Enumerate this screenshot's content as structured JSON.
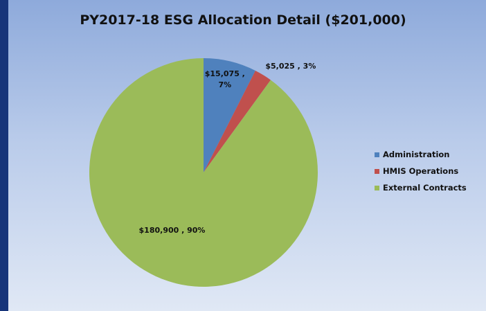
{
  "chart_data": {
    "type": "pie",
    "title": "PY2017-18 ESG Allocation Detail ($201,000)",
    "categories": [
      "Administration",
      "HMIS Operations",
      "External Contracts"
    ],
    "values": [
      15075,
      5025,
      180900
    ],
    "value_labels": [
      "$15,075 , 7%",
      "$5,025 , 3%",
      "$180,900 , 90%"
    ],
    "colors": [
      "#4f81bd",
      "#c0504d",
      "#9bbb59"
    ],
    "legend": "right"
  }
}
